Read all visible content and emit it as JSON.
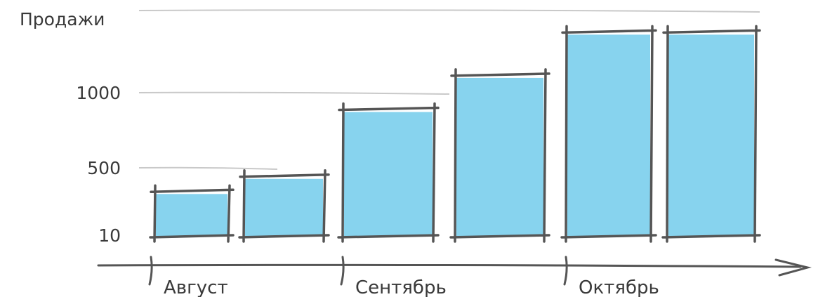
{
  "chart_data": {
    "type": "bar",
    "ylabel": "Продажи",
    "yticks": [
      10,
      500,
      1000
    ],
    "categories": [
      "Август",
      "Сентябрь",
      "Октябрь"
    ],
    "bars": [
      {
        "category": "Август",
        "value": 330
      },
      {
        "category": "Август",
        "value": 440
      },
      {
        "category": "Сентябрь",
        "value": 890
      },
      {
        "category": "Сентябрь",
        "value": 1110
      },
      {
        "category": "Октябрь",
        "value": 1380
      },
      {
        "category": "Октябрь",
        "value": 1380
      }
    ],
    "ylim": [
      10,
      1500
    ],
    "grid": true,
    "colors": {
      "bar": "#87d3ee",
      "edge": "#555555",
      "grid": "#c9c9c9",
      "text": "#3a3a3a"
    }
  }
}
